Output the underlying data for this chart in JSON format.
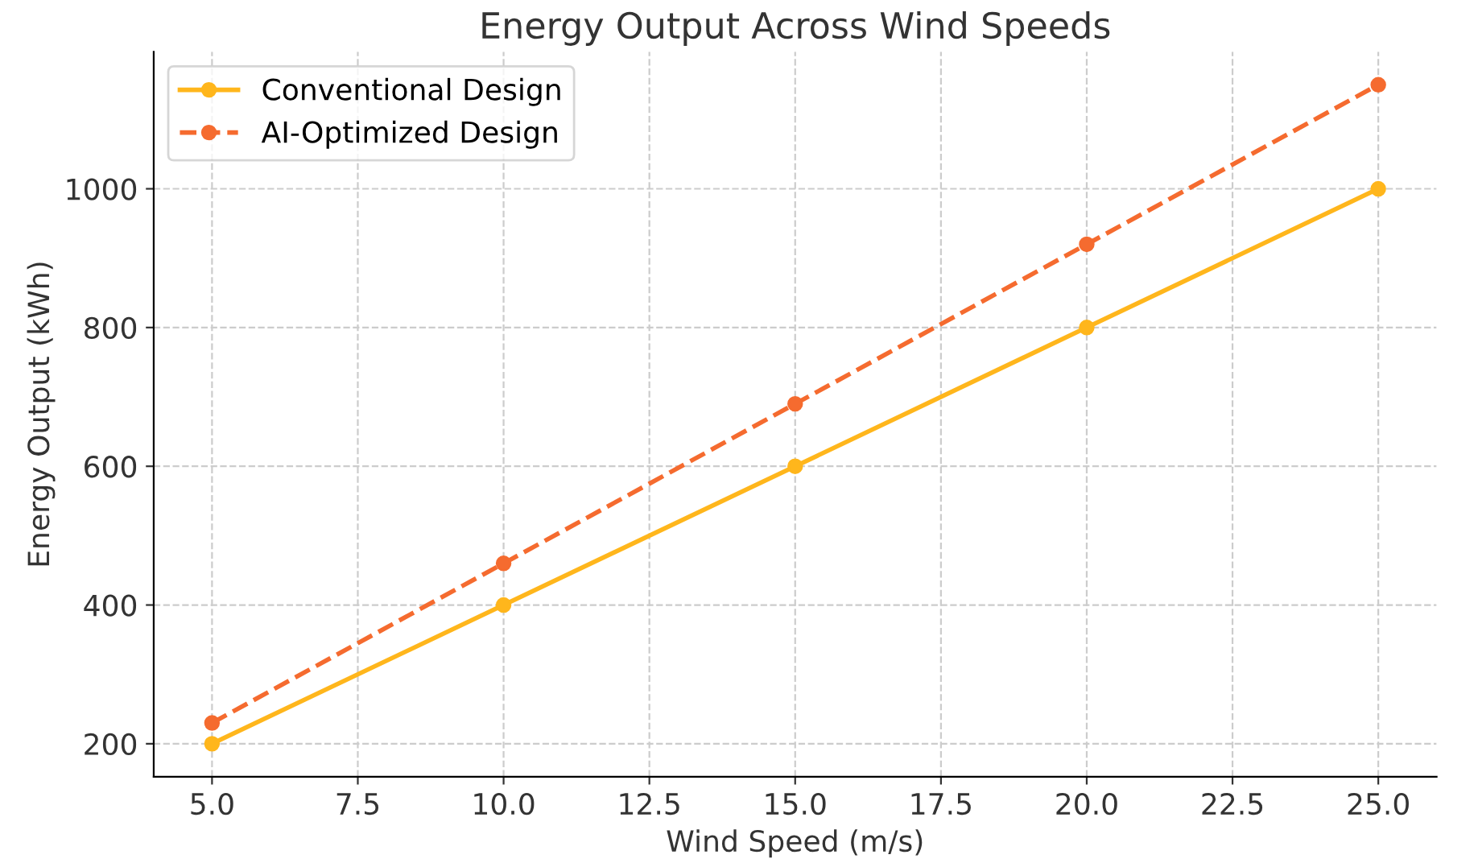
{
  "chart_data": {
    "type": "line",
    "title": "Energy Output Across Wind Speeds",
    "xlabel": "Wind Speed (m/s)",
    "ylabel": "Energy Output (kWh)",
    "x": [
      5,
      10,
      15,
      20,
      25
    ],
    "series": [
      {
        "name": "Conventional Design",
        "color": "#ffb61c",
        "values": [
          200,
          400,
          600,
          800,
          1000
        ],
        "line_style": "solid"
      },
      {
        "name": "AI-Optimized Design",
        "color": "#f56b2f",
        "values": [
          230,
          460,
          690,
          920,
          1150
        ],
        "line_style": "dashed"
      }
    ],
    "marker": "circle",
    "xlim": [
      4,
      26
    ],
    "xticks": [
      {
        "value": 5,
        "label": "5.0"
      },
      {
        "value": 7.5,
        "label": "7.5"
      },
      {
        "value": 10,
        "label": "10.0"
      },
      {
        "value": 12.5,
        "label": "12.5"
      },
      {
        "value": 15,
        "label": "15.0"
      },
      {
        "value": 17.5,
        "label": "17.5"
      },
      {
        "value": 20,
        "label": "20.0"
      },
      {
        "value": 22.5,
        "label": "22.5"
      },
      {
        "value": 25,
        "label": "25.0"
      }
    ],
    "ylim": [
      152.5,
      1197.5
    ],
    "yticks": [
      200,
      400,
      600,
      800,
      1000
    ],
    "grid": true,
    "legend": "top left"
  }
}
